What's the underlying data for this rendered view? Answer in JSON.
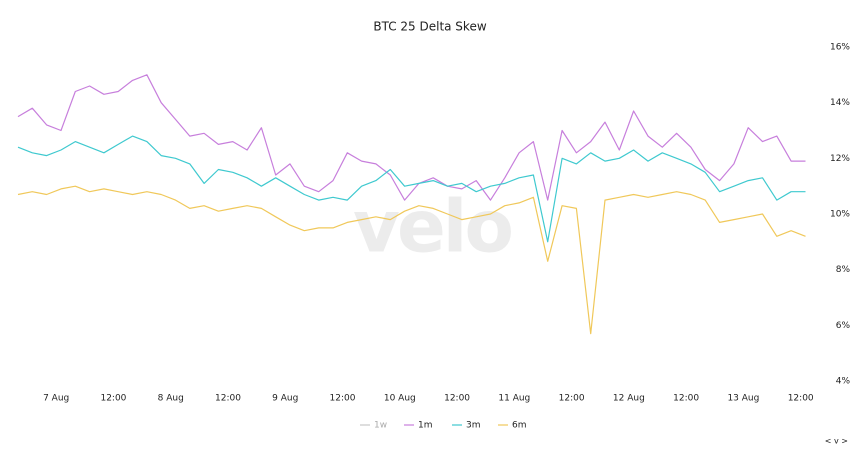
{
  "chart_data": {
    "type": "line",
    "title": "BTC 25 Delta Skew",
    "watermark": "velo",
    "legend_nav": "< v >",
    "x": [
      -8,
      -5,
      -2,
      1,
      4,
      7,
      10,
      13,
      16,
      19,
      22,
      25,
      28,
      31,
      34,
      37,
      40,
      43,
      46,
      49,
      52,
      55,
      58,
      61,
      64,
      67,
      70,
      73,
      76,
      79,
      82,
      85,
      88,
      91,
      94,
      97,
      100,
      103,
      106,
      109,
      112,
      115,
      118,
      121,
      124,
      127,
      130,
      133,
      136,
      139,
      142,
      145,
      148,
      151,
      154,
      157
    ],
    "xlim": [
      -8,
      159
    ],
    "xticks": [
      {
        "value": 0,
        "label": "7 Aug"
      },
      {
        "value": 12,
        "label": "12:00"
      },
      {
        "value": 24,
        "label": "8 Aug"
      },
      {
        "value": 36,
        "label": "12:00"
      },
      {
        "value": 48,
        "label": "9 Aug"
      },
      {
        "value": 60,
        "label": "12:00"
      },
      {
        "value": 72,
        "label": "10 Aug"
      },
      {
        "value": 84,
        "label": "12:00"
      },
      {
        "value": 96,
        "label": "11 Aug"
      },
      {
        "value": 108,
        "label": "12:00"
      },
      {
        "value": 120,
        "label": "12 Aug"
      },
      {
        "value": 132,
        "label": "12:00"
      },
      {
        "value": 144,
        "label": "13 Aug"
      },
      {
        "value": 156,
        "label": "12:00"
      }
    ],
    "ylim": [
      4,
      16
    ],
    "yticks": [
      {
        "value": 4,
        "label": "4%"
      },
      {
        "value": 6,
        "label": "6%"
      },
      {
        "value": 8,
        "label": "8%"
      },
      {
        "value": 10,
        "label": "10%"
      },
      {
        "value": 12,
        "label": "12%"
      },
      {
        "value": 14,
        "label": "14%"
      },
      {
        "value": 16,
        "label": "16%"
      }
    ],
    "grid": false,
    "series": [
      {
        "name": "1w",
        "color": "#b5b5b5",
        "hidden": true,
        "values": [
          null,
          null,
          null,
          null,
          null,
          null,
          null,
          null,
          null,
          null,
          null,
          null,
          null,
          null,
          null,
          null,
          null,
          null,
          null,
          null,
          null,
          null,
          null,
          null,
          null,
          null,
          null,
          null,
          null,
          null,
          null,
          null,
          null,
          null,
          null,
          null,
          null,
          null,
          null,
          null,
          null,
          null,
          null,
          null,
          null,
          null,
          null,
          null,
          null,
          null,
          null,
          null,
          null,
          null,
          null,
          null
        ]
      },
      {
        "name": "1m",
        "color": "#c77fdc",
        "values": [
          13.5,
          13.8,
          13.2,
          13.0,
          14.4,
          14.6,
          14.3,
          14.4,
          14.8,
          15.0,
          14.0,
          13.4,
          12.8,
          12.9,
          12.5,
          12.6,
          12.3,
          13.1,
          11.4,
          11.8,
          11.0,
          10.8,
          11.2,
          12.2,
          11.9,
          11.8,
          11.4,
          10.5,
          11.1,
          11.3,
          11.0,
          10.9,
          11.2,
          10.5,
          11.3,
          12.2,
          12.6,
          10.5,
          13.0,
          12.2,
          12.6,
          13.3,
          12.3,
          13.7,
          12.8,
          12.4,
          12.9,
          12.4,
          11.6,
          11.2,
          11.8,
          13.1,
          12.6,
          12.8,
          11.9,
          11.9
        ]
      },
      {
        "name": "3m",
        "color": "#3fc9cf",
        "values": [
          12.4,
          12.2,
          12.1,
          12.3,
          12.6,
          12.4,
          12.2,
          12.5,
          12.8,
          12.6,
          12.1,
          12.0,
          11.8,
          11.1,
          11.6,
          11.5,
          11.3,
          11.0,
          11.3,
          11.0,
          10.7,
          10.5,
          10.6,
          10.5,
          11.0,
          11.2,
          11.6,
          11.0,
          11.1,
          11.2,
          11.0,
          11.1,
          10.8,
          11.0,
          11.1,
          11.3,
          11.4,
          9.0,
          12.0,
          11.8,
          12.2,
          11.9,
          12.0,
          12.3,
          11.9,
          12.2,
          12.0,
          11.8,
          11.5,
          10.8,
          11.0,
          11.2,
          11.3,
          10.5,
          10.8,
          10.8
        ]
      },
      {
        "name": "6m",
        "color": "#f0c85a",
        "values": [
          10.7,
          10.8,
          10.7,
          10.9,
          11.0,
          10.8,
          10.9,
          10.8,
          10.7,
          10.8,
          10.7,
          10.5,
          10.2,
          10.3,
          10.1,
          10.2,
          10.3,
          10.2,
          9.9,
          9.6,
          9.4,
          9.5,
          9.5,
          9.7,
          9.8,
          9.9,
          9.8,
          10.1,
          10.3,
          10.2,
          10.0,
          9.8,
          9.9,
          10.0,
          10.3,
          10.4,
          10.6,
          8.3,
          10.3,
          10.2,
          5.7,
          10.5,
          10.6,
          10.7,
          10.6,
          10.7,
          10.8,
          10.7,
          10.5,
          9.7,
          9.8,
          9.9,
          10.0,
          9.2,
          9.4,
          9.2
        ]
      }
    ]
  }
}
